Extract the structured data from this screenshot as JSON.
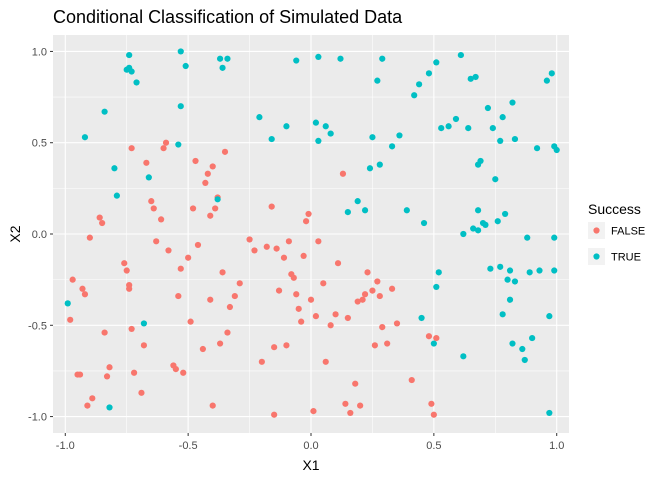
{
  "chart_data": {
    "type": "scatter",
    "title": "Conditional Classification of Simulated Data",
    "xlabel": "X1",
    "ylabel": "X2",
    "xlim": [
      -1.05,
      1.05
    ],
    "ylim": [
      -1.09,
      1.09
    ],
    "x_ticks": [
      -1.0,
      -0.5,
      0.0,
      0.5,
      1.0
    ],
    "x_tick_labels": [
      "-1.0",
      "-0.5",
      "0.0",
      "0.5",
      "1.0"
    ],
    "y_ticks": [
      -1.0,
      -0.5,
      0.0,
      0.5,
      1.0
    ],
    "y_tick_labels": [
      "-1.0",
      "-0.5",
      "0.0",
      "0.5",
      "1.0"
    ],
    "grid": true,
    "legend": {
      "title": "Success",
      "placement": "right"
    },
    "colors": {
      "panel_bg": "#ebebeb",
      "grid": "#ffffff",
      "FALSE": "#F8766D",
      "TRUE": "#00BFC4"
    },
    "series": [
      {
        "name": "FALSE",
        "color": "#F8766D",
        "points": [
          [
            -0.98,
            -0.47
          ],
          [
            -0.97,
            -0.25
          ],
          [
            -0.95,
            -0.77
          ],
          [
            -0.94,
            -0.77
          ],
          [
            -0.93,
            -0.3
          ],
          [
            -0.92,
            -0.33
          ],
          [
            -0.91,
            -0.94
          ],
          [
            -0.9,
            -0.02
          ],
          [
            -0.89,
            -0.9
          ],
          [
            -0.86,
            0.09
          ],
          [
            -0.85,
            0.06
          ],
          [
            -0.84,
            -0.54
          ],
          [
            -0.83,
            -0.78
          ],
          [
            -0.82,
            -0.73
          ],
          [
            -0.76,
            -0.16
          ],
          [
            -0.75,
            -0.2
          ],
          [
            -0.74,
            -0.28
          ],
          [
            -0.74,
            -0.3
          ],
          [
            -0.73,
            -0.52
          ],
          [
            -0.73,
            0.47
          ],
          [
            -0.72,
            -0.76
          ],
          [
            -0.69,
            -0.87
          ],
          [
            -0.68,
            -0.61
          ],
          [
            -0.67,
            0.39
          ],
          [
            -0.65,
            0.18
          ],
          [
            -0.64,
            0.14
          ],
          [
            -0.63,
            -0.04
          ],
          [
            -0.61,
            0.08
          ],
          [
            -0.6,
            0.47
          ],
          [
            -0.59,
            0.5
          ],
          [
            -0.58,
            -0.09
          ],
          [
            -0.56,
            -0.72
          ],
          [
            -0.55,
            -0.74
          ],
          [
            -0.54,
            -0.34
          ],
          [
            -0.53,
            -0.19
          ],
          [
            -0.52,
            -0.76
          ],
          [
            -0.5,
            -0.13
          ],
          [
            -0.49,
            -0.48
          ],
          [
            -0.48,
            0.14
          ],
          [
            -0.47,
            0.4
          ],
          [
            -0.46,
            -0.06
          ],
          [
            -0.44,
            -0.63
          ],
          [
            -0.43,
            0.28
          ],
          [
            -0.42,
            0.33
          ],
          [
            -0.41,
            0.1
          ],
          [
            -0.41,
            -0.36
          ],
          [
            -0.4,
            0.37
          ],
          [
            -0.4,
            -0.94
          ],
          [
            -0.39,
            0.14
          ],
          [
            -0.38,
            0.2
          ],
          [
            -0.37,
            -0.6
          ],
          [
            -0.36,
            -0.21
          ],
          [
            -0.35,
            0.45
          ],
          [
            -0.34,
            -0.54
          ],
          [
            -0.33,
            -0.4
          ],
          [
            -0.31,
            -0.34
          ],
          [
            -0.29,
            -0.27
          ],
          [
            -0.25,
            -0.03
          ],
          [
            -0.23,
            -0.09
          ],
          [
            -0.2,
            -0.7
          ],
          [
            -0.18,
            -0.07
          ],
          [
            -0.16,
            0.15
          ],
          [
            -0.15,
            -0.99
          ],
          [
            -0.15,
            -0.62
          ],
          [
            -0.14,
            -0.08
          ],
          [
            -0.13,
            -0.31
          ],
          [
            -0.11,
            -0.13
          ],
          [
            -0.1,
            -0.61
          ],
          [
            -0.09,
            -0.04
          ],
          [
            -0.08,
            -0.22
          ],
          [
            -0.07,
            -0.24
          ],
          [
            -0.06,
            -0.33
          ],
          [
            -0.05,
            -0.41
          ],
          [
            -0.04,
            -0.48
          ],
          [
            -0.03,
            -0.12
          ],
          [
            -0.02,
            0.07
          ],
          [
            -0.01,
            0.11
          ],
          [
            0.0,
            -0.36
          ],
          [
            0.01,
            -0.97
          ],
          [
            0.02,
            -0.45
          ],
          [
            0.03,
            -0.04
          ],
          [
            0.05,
            -0.27
          ],
          [
            0.06,
            -0.7
          ],
          [
            0.08,
            -0.5
          ],
          [
            0.1,
            -0.44
          ],
          [
            0.11,
            -0.16
          ],
          [
            0.13,
            0.33
          ],
          [
            0.14,
            -0.93
          ],
          [
            0.15,
            -0.46
          ],
          [
            0.16,
            -0.98
          ],
          [
            0.18,
            -0.82
          ],
          [
            0.19,
            -0.37
          ],
          [
            0.2,
            -0.94
          ],
          [
            0.21,
            -0.36
          ],
          [
            0.22,
            -0.33
          ],
          [
            0.23,
            -0.21
          ],
          [
            0.25,
            -0.31
          ],
          [
            0.26,
            -0.61
          ],
          [
            0.27,
            -0.26
          ],
          [
            0.28,
            -0.34
          ],
          [
            0.29,
            -0.51
          ],
          [
            0.31,
            -0.6
          ],
          [
            0.33,
            -0.3
          ],
          [
            0.35,
            -0.49
          ],
          [
            0.41,
            -0.8
          ],
          [
            0.48,
            -0.56
          ],
          [
            0.49,
            -0.93
          ],
          [
            0.5,
            -0.99
          ],
          [
            0.51,
            -0.57
          ]
        ]
      },
      {
        "name": "TRUE",
        "color": "#00BFC4",
        "points": [
          [
            -0.99,
            -0.38
          ],
          [
            -0.92,
            0.53
          ],
          [
            -0.84,
            0.67
          ],
          [
            -0.82,
            -0.95
          ],
          [
            -0.8,
            0.36
          ],
          [
            -0.79,
            0.21
          ],
          [
            -0.75,
            0.9
          ],
          [
            -0.74,
            0.91
          ],
          [
            -0.74,
            0.98
          ],
          [
            -0.73,
            0.89
          ],
          [
            -0.71,
            0.83
          ],
          [
            -0.68,
            -0.49
          ],
          [
            -0.66,
            0.31
          ],
          [
            -0.54,
            0.49
          ],
          [
            -0.53,
            0.7
          ],
          [
            -0.53,
            1.0
          ],
          [
            -0.51,
            0.92
          ],
          [
            -0.38,
            0.19
          ],
          [
            -0.37,
            0.96
          ],
          [
            -0.36,
            0.91
          ],
          [
            -0.34,
            0.96
          ],
          [
            -0.21,
            0.64
          ],
          [
            -0.16,
            0.52
          ],
          [
            -0.1,
            0.59
          ],
          [
            -0.06,
            0.95
          ],
          [
            0.02,
            0.61
          ],
          [
            0.03,
            0.97
          ],
          [
            0.03,
            0.51
          ],
          [
            0.06,
            0.59
          ],
          [
            0.08,
            0.55
          ],
          [
            0.12,
            0.96
          ],
          [
            0.15,
            0.12
          ],
          [
            0.19,
            0.18
          ],
          [
            0.22,
            0.13
          ],
          [
            0.24,
            0.36
          ],
          [
            0.25,
            0.53
          ],
          [
            0.27,
            0.84
          ],
          [
            0.28,
            0.38
          ],
          [
            0.29,
            0.96
          ],
          [
            0.33,
            0.48
          ],
          [
            0.36,
            0.54
          ],
          [
            0.39,
            0.13
          ],
          [
            0.42,
            0.76
          ],
          [
            0.44,
            0.82
          ],
          [
            0.45,
            -0.46
          ],
          [
            0.46,
            0.06
          ],
          [
            0.48,
            0.88
          ],
          [
            0.5,
            -0.6
          ],
          [
            0.51,
            -0.29
          ],
          [
            0.51,
            0.94
          ],
          [
            0.52,
            -0.21
          ],
          [
            0.53,
            0.58
          ],
          [
            0.56,
            0.59
          ],
          [
            0.59,
            0.63
          ],
          [
            0.61,
            0.98
          ],
          [
            0.62,
            0.0
          ],
          [
            0.62,
            -0.67
          ],
          [
            0.64,
            0.58
          ],
          [
            0.65,
            0.85
          ],
          [
            0.66,
            0.03
          ],
          [
            0.67,
            0.86
          ],
          [
            0.68,
            0.02
          ],
          [
            0.68,
            0.38
          ],
          [
            0.68,
            0.13
          ],
          [
            0.69,
            0.4
          ],
          [
            0.7,
            0.06
          ],
          [
            0.72,
            0.69
          ],
          [
            0.73,
            -0.19
          ],
          [
            0.75,
            0.3
          ],
          [
            0.76,
            0.07
          ],
          [
            0.77,
            -0.18
          ],
          [
            0.77,
            0.51
          ],
          [
            0.78,
            -0.44
          ],
          [
            0.78,
            0.64
          ],
          [
            0.79,
            0.11
          ],
          [
            0.8,
            -0.25
          ],
          [
            0.81,
            -0.36
          ],
          [
            0.81,
            -0.2
          ],
          [
            0.82,
            0.72
          ],
          [
            0.82,
            -0.6
          ],
          [
            0.83,
            -0.26
          ],
          [
            0.83,
            0.52
          ],
          [
            0.86,
            -0.63
          ],
          [
            0.87,
            -0.69
          ],
          [
            0.88,
            -0.02
          ],
          [
            0.89,
            -0.21
          ],
          [
            0.9,
            -0.57
          ],
          [
            0.92,
            0.47
          ],
          [
            0.93,
            -0.2
          ],
          [
            0.96,
            0.84
          ],
          [
            0.97,
            -0.45
          ],
          [
            0.97,
            -0.98
          ],
          [
            0.98,
            0.88
          ],
          [
            0.99,
            0.48
          ],
          [
            0.99,
            -0.02
          ],
          [
            0.99,
            -0.2
          ],
          [
            1.0,
            0.46
          ],
          [
            0.74,
            0.58
          ],
          [
            0.71,
            0.05
          ]
        ]
      }
    ]
  }
}
